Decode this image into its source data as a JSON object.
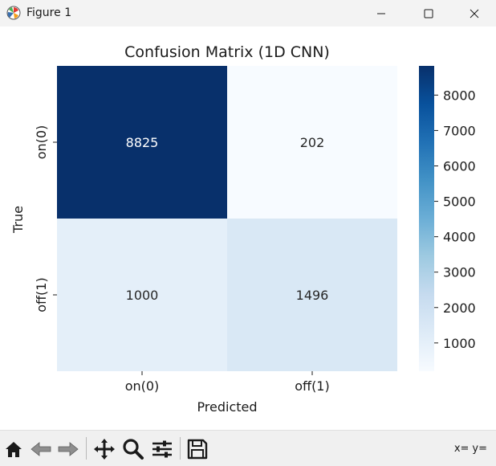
{
  "window": {
    "title": "Figure 1",
    "app_icon": "matplotlib-icon",
    "controls": [
      "minimize-icon",
      "maximize-icon",
      "close-icon"
    ]
  },
  "chart_data": {
    "type": "heatmap",
    "title": "Confusion Matrix (1D CNN)",
    "xlabel": "Predicted",
    "ylabel": "True",
    "x_categories": [
      "on(0)",
      "off(1)"
    ],
    "y_categories": [
      "on(0)",
      "off(1)"
    ],
    "values": [
      [
        8825,
        202
      ],
      [
        1000,
        1496
      ]
    ],
    "colormap": "Blues",
    "vmin": 202,
    "vmax": 8825,
    "colorbar_ticks": [
      1000,
      2000,
      3000,
      4000,
      5000,
      6000,
      7000,
      8000
    ],
    "annotation_colors": {
      "dark_cell": "#ffffff",
      "light_cell": "#262626"
    },
    "grid": false
  },
  "toolbar": {
    "buttons": [
      {
        "name": "home-button",
        "icon": "home-icon"
      },
      {
        "name": "back-button",
        "icon": "back-arrow-icon"
      },
      {
        "name": "forward-button",
        "icon": "forward-arrow-icon"
      },
      {
        "name": "pan-button",
        "icon": "move-icon"
      },
      {
        "name": "zoom-button",
        "icon": "magnifier-icon"
      },
      {
        "name": "configure-subplots-button",
        "icon": "sliders-icon"
      },
      {
        "name": "save-button",
        "icon": "floppy-disk-icon"
      }
    ],
    "coords_x_label": "x=",
    "coords_y_label": "y="
  }
}
